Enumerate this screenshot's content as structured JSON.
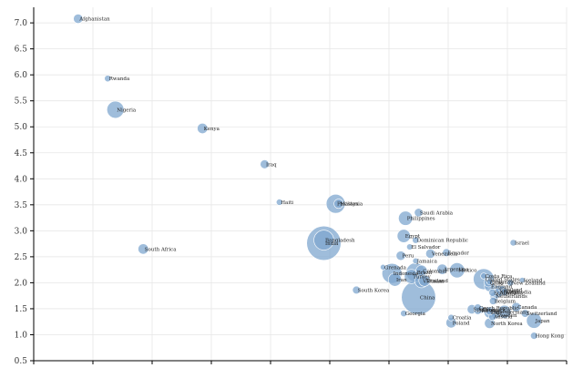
{
  "colors": {
    "bubble": "#7fa7cf",
    "bubble_stroke": "#ffffff",
    "grid": "#e6e6e6",
    "axis": "#000000"
  },
  "chart_data": {
    "type": "scatter",
    "title": "",
    "xlabel": "",
    "ylabel": "",
    "grid": true,
    "xlim": [
      0,
      9
    ],
    "ylim": [
      0.5,
      7.3
    ],
    "y_ticks": [
      "0.5",
      "1.0",
      "1.5",
      "2.0",
      "2.5",
      "3.0",
      "3.5",
      "4.0",
      "4.5",
      "5.0",
      "5.5",
      "6.0",
      "6.5",
      "7.0"
    ],
    "y_tick_values": [
      0.5,
      1.0,
      1.5,
      2.0,
      2.5,
      3.0,
      3.5,
      4.0,
      4.5,
      5.0,
      5.5,
      6.0,
      6.5,
      7.0
    ],
    "x_tick_values": [
      0,
      1,
      2,
      3,
      4,
      5,
      6,
      7,
      8,
      9
    ],
    "size_unit": "relative",
    "points": [
      {
        "label": "Afghanistan",
        "x": 0.75,
        "y": 7.08,
        "size": 3
      },
      {
        "label": "Rwanda",
        "x": 1.25,
        "y": 5.93,
        "size": 1.5
      },
      {
        "label": "Nigeria",
        "x": 1.38,
        "y": 5.33,
        "size": 7
      },
      {
        "label": "Kenya",
        "x": 2.85,
        "y": 4.97,
        "size": 3.5
      },
      {
        "label": "Iraq",
        "x": 3.9,
        "y": 4.28,
        "size": 2.7
      },
      {
        "label": "Haiti",
        "x": 4.15,
        "y": 3.55,
        "size": 1.4
      },
      {
        "label": "Pakistan",
        "x": 5.1,
        "y": 3.52,
        "size": 8
      },
      {
        "label": "Malaysia",
        "x": 5.15,
        "y": 3.52,
        "size": 3
      },
      {
        "label": "Saudi Arabia",
        "x": 6.5,
        "y": 3.35,
        "size": 2.5
      },
      {
        "label": "Philippines",
        "x": 6.28,
        "y": 3.24,
        "size": 5.5
      },
      {
        "label": "Israel",
        "x": 8.1,
        "y": 2.77,
        "size": 1.5
      },
      {
        "label": "Bangladesh",
        "x": 4.9,
        "y": 2.82,
        "size": 8.5
      },
      {
        "label": "India",
        "x": 4.9,
        "y": 2.76,
        "size": 16
      },
      {
        "label": "Egypt",
        "x": 6.25,
        "y": 2.9,
        "size": 5
      },
      {
        "label": "Dominican Republic",
        "x": 6.45,
        "y": 2.82,
        "size": 1.5
      },
      {
        "label": "El Salvador",
        "x": 6.35,
        "y": 2.69,
        "size": 1.3
      },
      {
        "label": "South Africa",
        "x": 1.85,
        "y": 2.65,
        "size": 3.5
      },
      {
        "label": "Venezuela",
        "x": 6.7,
        "y": 2.56,
        "size": 3
      },
      {
        "label": "Ecuador",
        "x": 6.97,
        "y": 2.58,
        "size": 2.2
      },
      {
        "label": "Peru",
        "x": 6.2,
        "y": 2.52,
        "size": 3
      },
      {
        "label": "Jamaica",
        "x": 6.45,
        "y": 2.42,
        "size": 1.2
      },
      {
        "label": "Grenada",
        "x": 5.9,
        "y": 2.3,
        "size": 1
      },
      {
        "label": "Argentina",
        "x": 6.9,
        "y": 2.26,
        "size": 3.5
      },
      {
        "label": "Mexico",
        "x": 7.15,
        "y": 2.24,
        "size": 6
      },
      {
        "label": "Colombia",
        "x": 6.55,
        "y": 2.23,
        "size": 4
      },
      {
        "label": "Brazil",
        "x": 6.45,
        "y": 2.2,
        "size": 8
      },
      {
        "label": "Indonesia",
        "x": 6.05,
        "y": 2.18,
        "size": 8.5
      },
      {
        "label": "Turkey",
        "x": 6.38,
        "y": 2.12,
        "size": 5.5
      },
      {
        "label": "Iran",
        "x": 6.1,
        "y": 2.06,
        "size": 5
      },
      {
        "label": "Costa Rica",
        "x": 7.6,
        "y": 2.13,
        "size": 1.3
      },
      {
        "label": "United States",
        "x": 7.6,
        "y": 2.07,
        "size": 9
      },
      {
        "label": "Iceland",
        "x": 8.25,
        "y": 2.05,
        "size": 1
      },
      {
        "label": "Uruguay",
        "x": 7.7,
        "y": 2.02,
        "size": 1.3
      },
      {
        "label": "Chile",
        "x": 7.68,
        "y": 2.0,
        "size": 2.5
      },
      {
        "label": "New Zealand",
        "x": 8.05,
        "y": 2.0,
        "size": 1.5
      },
      {
        "label": "Thailand",
        "x": 6.6,
        "y": 2.04,
        "size": 4
      },
      {
        "label": "Vietnam",
        "x": 6.55,
        "y": 2.03,
        "size": 5
      },
      {
        "label": "England",
        "x": 7.7,
        "y": 1.93,
        "size": 3.5
      },
      {
        "label": "Ireland",
        "x": 7.92,
        "y": 1.87,
        "size": 2
      },
      {
        "label": "France",
        "x": 7.85,
        "y": 1.84,
        "size": 4
      },
      {
        "label": "Australia",
        "x": 7.85,
        "y": 1.81,
        "size": 3
      },
      {
        "label": "Cambodia",
        "x": 7.95,
        "y": 1.82,
        "size": 2
      },
      {
        "label": "Scotland",
        "x": 7.75,
        "y": 1.81,
        "size": 2
      },
      {
        "label": "Netherlands",
        "x": 7.78,
        "y": 1.74,
        "size": 2.5
      },
      {
        "label": "South Korea",
        "x": 5.45,
        "y": 1.86,
        "size": 2.2
      },
      {
        "label": "Belgium",
        "x": 7.76,
        "y": 1.65,
        "size": 2
      },
      {
        "label": "China",
        "x": 6.5,
        "y": 1.72,
        "size": 16
      },
      {
        "label": "Canada",
        "x": 8.15,
        "y": 1.53,
        "size": 3
      },
      {
        "label": "Germany",
        "x": 7.95,
        "y": 1.44,
        "size": 5
      },
      {
        "label": "Japan",
        "x": 8.45,
        "y": 1.27,
        "size": 6
      },
      {
        "label": "Switzerland",
        "x": 8.3,
        "y": 1.41,
        "size": 2.2
      },
      {
        "label": "Sweden",
        "x": 7.8,
        "y": 1.38,
        "size": 2.2
      },
      {
        "label": "Austria",
        "x": 7.75,
        "y": 1.35,
        "size": 2.2
      },
      {
        "label": "Italy",
        "x": 7.7,
        "y": 1.43,
        "size": 4
      },
      {
        "label": "Finland",
        "x": 7.7,
        "y": 1.45,
        "size": 2
      },
      {
        "label": "Denmark",
        "x": 7.55,
        "y": 1.48,
        "size": 2
      },
      {
        "label": "Norway",
        "x": 7.5,
        "y": 1.46,
        "size": 2
      },
      {
        "label": "Spain",
        "x": 7.4,
        "y": 1.49,
        "size": 3
      },
      {
        "label": "Czech Republic",
        "x": 7.5,
        "y": 1.52,
        "size": 2
      },
      {
        "label": "Georgia",
        "x": 6.25,
        "y": 1.41,
        "size": 1.5
      },
      {
        "label": "Croatia",
        "x": 7.05,
        "y": 1.33,
        "size": 1.5
      },
      {
        "label": "Poland",
        "x": 7.05,
        "y": 1.23,
        "size": 3.5
      },
      {
        "label": "North Korea",
        "x": 7.7,
        "y": 1.22,
        "size": 3.5
      },
      {
        "label": "Hong Kong",
        "x": 8.45,
        "y": 0.98,
        "size": 1.8
      }
    ]
  }
}
